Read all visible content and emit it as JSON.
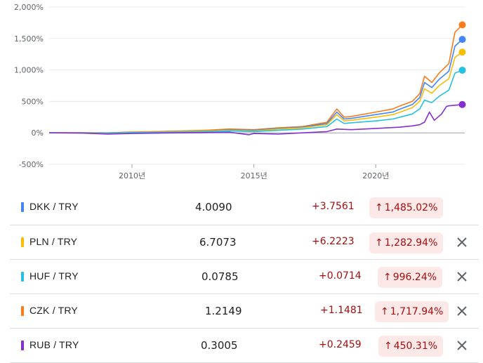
{
  "chart_data": {
    "type": "line",
    "y_axis": {
      "ticks": [
        2000,
        1500,
        1000,
        500,
        0,
        -500
      ],
      "tick_labels": [
        "2,000%",
        "1,500%",
        "1,000%",
        "500%",
        "0%",
        "-500%"
      ],
      "ylim": [
        -500,
        2000
      ]
    },
    "x_axis": {
      "ticks": [
        2010,
        2015,
        2020
      ],
      "tick_labels": [
        "2010년",
        "2015년",
        "2020년"
      ],
      "xlim": [
        2006.6,
        2023.65
      ]
    },
    "grid": true,
    "series": [
      {
        "name": "CZK / TRY",
        "color": "#fa7b17",
        "points": [
          [
            2006.6,
            0
          ],
          [
            2008.0,
            5
          ],
          [
            2009.0,
            0
          ],
          [
            2010.0,
            15
          ],
          [
            2011.0,
            20
          ],
          [
            2012.0,
            30
          ],
          [
            2013.0,
            40
          ],
          [
            2014.0,
            60
          ],
          [
            2015.0,
            50
          ],
          [
            2016.0,
            80
          ],
          [
            2017.0,
            100
          ],
          [
            2018.0,
            170
          ],
          [
            2018.4,
            380
          ],
          [
            2018.7,
            250
          ],
          [
            2019.0,
            260
          ],
          [
            2020.0,
            330
          ],
          [
            2020.7,
            380
          ],
          [
            2021.0,
            430
          ],
          [
            2021.5,
            500
          ],
          [
            2021.8,
            620
          ],
          [
            2022.0,
            900
          ],
          [
            2022.3,
            800
          ],
          [
            2022.6,
            950
          ],
          [
            2023.0,
            1100
          ],
          [
            2023.25,
            1600
          ],
          [
            2023.55,
            1717
          ]
        ]
      },
      {
        "name": "DKK / TRY",
        "color": "#4285f4",
        "points": [
          [
            2006.6,
            0
          ],
          [
            2008.0,
            0
          ],
          [
            2009.0,
            -5
          ],
          [
            2010.0,
            10
          ],
          [
            2011.0,
            15
          ],
          [
            2012.0,
            25
          ],
          [
            2013.0,
            30
          ],
          [
            2014.0,
            50
          ],
          [
            2015.0,
            40
          ],
          [
            2016.0,
            70
          ],
          [
            2017.0,
            90
          ],
          [
            2018.0,
            150
          ],
          [
            2018.4,
            330
          ],
          [
            2018.7,
            220
          ],
          [
            2019.0,
            230
          ],
          [
            2020.0,
            290
          ],
          [
            2020.7,
            330
          ],
          [
            2021.0,
            380
          ],
          [
            2021.5,
            450
          ],
          [
            2021.8,
            560
          ],
          [
            2022.0,
            800
          ],
          [
            2022.3,
            720
          ],
          [
            2022.6,
            850
          ],
          [
            2023.0,
            980
          ],
          [
            2023.25,
            1380
          ],
          [
            2023.55,
            1485
          ]
        ]
      },
      {
        "name": "PLN / TRY",
        "color": "#fbbc04",
        "points": [
          [
            2006.6,
            0
          ],
          [
            2008.0,
            5
          ],
          [
            2009.0,
            -10
          ],
          [
            2010.0,
            10
          ],
          [
            2011.0,
            10
          ],
          [
            2012.0,
            20
          ],
          [
            2013.0,
            30
          ],
          [
            2014.0,
            40
          ],
          [
            2015.0,
            30
          ],
          [
            2016.0,
            60
          ],
          [
            2017.0,
            80
          ],
          [
            2018.0,
            130
          ],
          [
            2018.4,
            290
          ],
          [
            2018.7,
            190
          ],
          [
            2019.0,
            200
          ],
          [
            2020.0,
            250
          ],
          [
            2020.7,
            290
          ],
          [
            2021.0,
            330
          ],
          [
            2021.5,
            400
          ],
          [
            2021.8,
            500
          ],
          [
            2022.0,
            700
          ],
          [
            2022.3,
            630
          ],
          [
            2022.6,
            750
          ],
          [
            2023.0,
            860
          ],
          [
            2023.25,
            1200
          ],
          [
            2023.55,
            1283
          ]
        ]
      },
      {
        "name": "HUF / TRY",
        "color": "#24c1e0",
        "points": [
          [
            2006.6,
            0
          ],
          [
            2008.0,
            0
          ],
          [
            2009.0,
            -10
          ],
          [
            2010.0,
            5
          ],
          [
            2011.0,
            5
          ],
          [
            2012.0,
            10
          ],
          [
            2013.0,
            20
          ],
          [
            2014.0,
            30
          ],
          [
            2015.0,
            20
          ],
          [
            2016.0,
            40
          ],
          [
            2017.0,
            60
          ],
          [
            2018.0,
            100
          ],
          [
            2018.4,
            220
          ],
          [
            2018.7,
            150
          ],
          [
            2019.0,
            160
          ],
          [
            2020.0,
            190
          ],
          [
            2020.7,
            220
          ],
          [
            2021.0,
            250
          ],
          [
            2021.5,
            300
          ],
          [
            2021.8,
            380
          ],
          [
            2022.0,
            520
          ],
          [
            2022.3,
            480
          ],
          [
            2022.6,
            580
          ],
          [
            2023.0,
            680
          ],
          [
            2023.25,
            950
          ],
          [
            2023.55,
            996
          ]
        ]
      },
      {
        "name": "RUB / TRY",
        "color": "#8430ce",
        "points": [
          [
            2006.6,
            0
          ],
          [
            2008.0,
            -5
          ],
          [
            2009.0,
            -20
          ],
          [
            2010.0,
            -10
          ],
          [
            2011.0,
            -5
          ],
          [
            2012.0,
            0
          ],
          [
            2013.0,
            5
          ],
          [
            2014.0,
            10
          ],
          [
            2014.8,
            -30
          ],
          [
            2015.0,
            -10
          ],
          [
            2016.0,
            -20
          ],
          [
            2017.0,
            0
          ],
          [
            2018.0,
            20
          ],
          [
            2018.4,
            60
          ],
          [
            2019.0,
            50
          ],
          [
            2020.0,
            70
          ],
          [
            2021.0,
            90
          ],
          [
            2021.5,
            110
          ],
          [
            2021.8,
            130
          ],
          [
            2022.0,
            170
          ],
          [
            2022.2,
            330
          ],
          [
            2022.4,
            200
          ],
          [
            2022.7,
            300
          ],
          [
            2022.9,
            420
          ],
          [
            2023.0,
            430
          ],
          [
            2023.55,
            450
          ]
        ]
      }
    ]
  },
  "rows": [
    {
      "pair": "DKK / TRY",
      "color": "#4285f4",
      "price": "4.0090",
      "change": "+3.7561",
      "pct": "1,485.02%",
      "removable": false
    },
    {
      "pair": "PLN / TRY",
      "color": "#fbbc04",
      "price": "6.7073",
      "change": "+6.2223",
      "pct": "1,282.94%",
      "removable": true
    },
    {
      "pair": "HUF / TRY",
      "color": "#24c1e0",
      "price": "0.0785",
      "change": "+0.0714",
      "pct": "996.24%",
      "removable": true
    },
    {
      "pair": "CZK / TRY",
      "color": "#fa7b17",
      "price": "1.2149",
      "change": "+1.1481",
      "pct": "1,717.94%",
      "removable": true
    },
    {
      "pair": "RUB / TRY",
      "color": "#8430ce",
      "price": "0.3005",
      "change": "+0.2459",
      "pct": "450.31%",
      "removable": true
    }
  ]
}
